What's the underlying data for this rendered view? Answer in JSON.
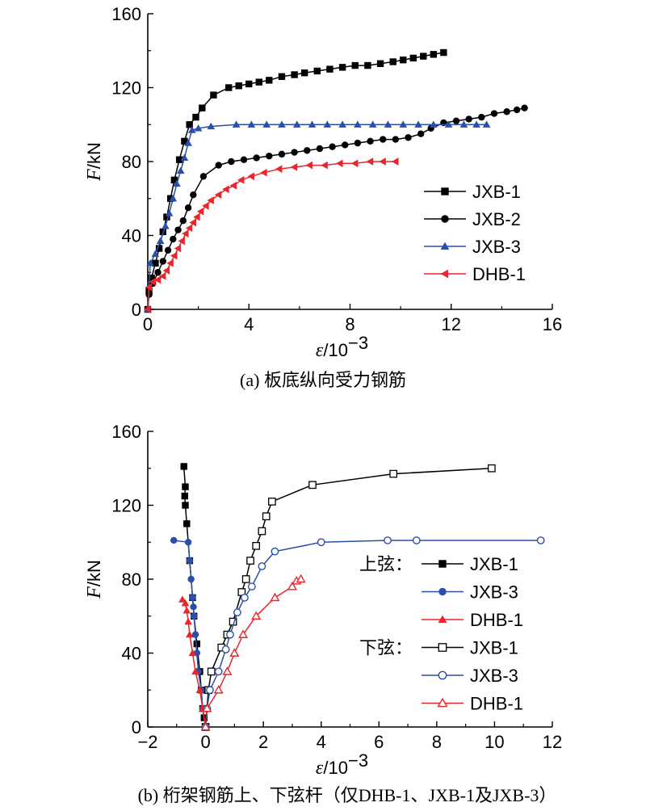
{
  "chart_data": [
    {
      "type": "line",
      "caption": "(a) 板底纵向受力钢筋",
      "ylabel_var": "F",
      "ylabel_unit": "/kN",
      "xlabel_var": "ε",
      "xlabel_unit": "/10",
      "xlabel_exp": "−3",
      "xlim": [
        0,
        16
      ],
      "ylim": [
        0,
        160
      ],
      "xticks": [
        "0",
        "4",
        "8",
        "12",
        "16"
      ],
      "yticks": [
        "0",
        "40",
        "80",
        "120",
        "160"
      ],
      "legend_position": "lower-right",
      "grid": false,
      "series": [
        {
          "name": "JXB-1",
          "color": "#000000",
          "marker": "square",
          "filled": true,
          "points": [
            [
              0,
              0
            ],
            [
              0.05,
              10
            ],
            [
              0.15,
              17
            ],
            [
              0.3,
              25
            ],
            [
              0.45,
              33
            ],
            [
              0.6,
              42
            ],
            [
              0.75,
              50
            ],
            [
              0.9,
              60
            ],
            [
              1.05,
              70
            ],
            [
              1.25,
              81
            ],
            [
              1.45,
              91
            ],
            [
              1.65,
              100
            ],
            [
              1.9,
              104
            ],
            [
              2.15,
              109
            ],
            [
              2.6,
              116
            ],
            [
              3.2,
              120
            ],
            [
              3.6,
              121
            ],
            [
              4.0,
              122
            ],
            [
              4.4,
              123
            ],
            [
              4.8,
              124
            ],
            [
              5.3,
              126
            ],
            [
              5.8,
              127
            ],
            [
              6.2,
              128
            ],
            [
              6.7,
              129
            ],
            [
              7.2,
              130
            ],
            [
              7.7,
              131
            ],
            [
              8.2,
              132
            ],
            [
              8.7,
              132
            ],
            [
              9.2,
              133
            ],
            [
              9.7,
              134
            ],
            [
              10.1,
              135
            ],
            [
              10.5,
              136
            ],
            [
              10.9,
              137
            ],
            [
              11.3,
              138
            ],
            [
              11.7,
              139
            ]
          ]
        },
        {
          "name": "JXB-2",
          "color": "#000000",
          "marker": "circle",
          "filled": true,
          "points": [
            [
              0,
              0
            ],
            [
              0.05,
              8
            ],
            [
              0.2,
              14
            ],
            [
              0.4,
              20
            ],
            [
              0.6,
              26
            ],
            [
              0.8,
              32
            ],
            [
              1.0,
              38
            ],
            [
              1.2,
              43
            ],
            [
              1.4,
              48
            ],
            [
              1.6,
              55
            ],
            [
              1.8,
              62
            ],
            [
              2.2,
              72
            ],
            [
              2.8,
              78
            ],
            [
              3.3,
              80
            ],
            [
              3.8,
              81
            ],
            [
              4.3,
              82
            ],
            [
              4.8,
              83
            ],
            [
              5.3,
              84
            ],
            [
              5.8,
              85
            ],
            [
              6.3,
              86
            ],
            [
              6.8,
              87
            ],
            [
              7.3,
              88
            ],
            [
              7.8,
              89
            ],
            [
              8.3,
              90
            ],
            [
              8.8,
              91
            ],
            [
              9.3,
              92
            ],
            [
              9.8,
              92
            ],
            [
              10.3,
              93
            ],
            [
              10.8,
              95
            ],
            [
              11.2,
              98
            ],
            [
              11.7,
              101
            ],
            [
              12.2,
              102
            ],
            [
              12.7,
              103
            ],
            [
              13.2,
              104
            ],
            [
              13.7,
              106
            ],
            [
              14.2,
              107
            ],
            [
              14.6,
              108
            ],
            [
              14.9,
              109
            ]
          ]
        },
        {
          "name": "JXB-3",
          "color": "#2a4fa8",
          "marker": "triangle-up",
          "filled": true,
          "points": [
            [
              0,
              0
            ],
            [
              0.1,
              25
            ],
            [
              0.3,
              30
            ],
            [
              0.5,
              37
            ],
            [
              0.7,
              45
            ],
            [
              0.85,
              52
            ],
            [
              1.0,
              60
            ],
            [
              1.15,
              68
            ],
            [
              1.3,
              75
            ],
            [
              1.45,
              82
            ],
            [
              1.6,
              90
            ],
            [
              1.75,
              97
            ],
            [
              2.0,
              98
            ],
            [
              2.5,
              99
            ],
            [
              3.5,
              100
            ],
            [
              4.1,
              100
            ],
            [
              4.7,
              100
            ],
            [
              5.3,
              100
            ],
            [
              5.9,
              100
            ],
            [
              6.5,
              100
            ],
            [
              7.1,
              100
            ],
            [
              7.7,
              100
            ],
            [
              8.3,
              100
            ],
            [
              8.9,
              100
            ],
            [
              9.5,
              100
            ],
            [
              10.1,
              100
            ],
            [
              10.7,
              100
            ],
            [
              11.3,
              100
            ],
            [
              11.9,
              100
            ],
            [
              12.5,
              100
            ],
            [
              13.0,
              100
            ],
            [
              13.4,
              100
            ]
          ]
        },
        {
          "name": "DHB-1",
          "color": "#e8262b",
          "marker": "triangle-left",
          "filled": true,
          "points": [
            [
              0,
              0
            ],
            [
              0.05,
              12
            ],
            [
              0.2,
              15
            ],
            [
              0.4,
              16
            ],
            [
              0.6,
              18
            ],
            [
              0.75,
              21
            ],
            [
              0.9,
              25
            ],
            [
              1.05,
              29
            ],
            [
              1.2,
              33
            ],
            [
              1.35,
              37
            ],
            [
              1.5,
              41
            ],
            [
              1.65,
              44
            ],
            [
              1.8,
              47
            ],
            [
              1.95,
              50
            ],
            [
              2.1,
              53
            ],
            [
              2.3,
              56
            ],
            [
              2.5,
              59
            ],
            [
              2.8,
              62
            ],
            [
              3.1,
              65
            ],
            [
              3.4,
              67
            ],
            [
              3.7,
              70
            ],
            [
              4.1,
              72
            ],
            [
              4.6,
              74
            ],
            [
              5.2,
              76
            ],
            [
              5.8,
              77
            ],
            [
              6.4,
              78
            ],
            [
              7.0,
              78
            ],
            [
              7.6,
              79
            ],
            [
              8.2,
              79
            ],
            [
              8.8,
              80
            ],
            [
              9.3,
              80
            ],
            [
              9.8,
              80
            ]
          ]
        }
      ]
    },
    {
      "type": "line",
      "caption": "(b) 桁架钢筋上、下弦杆（仅DHB-1、JXB-1及JXB-3）",
      "ylabel_var": "F",
      "ylabel_unit": "/kN",
      "xlabel_var": "ε",
      "xlabel_unit": "/10",
      "xlabel_exp": "−3",
      "xlim": [
        -2,
        12
      ],
      "ylim": [
        0,
        160
      ],
      "xticks": [
        "−2",
        "0",
        "2",
        "4",
        "6",
        "8",
        "10",
        "12"
      ],
      "yticks": [
        "0",
        "40",
        "80",
        "120",
        "160"
      ],
      "legend_position": "right",
      "grid": false,
      "legend_groups": [
        "上弦：",
        "下弦："
      ],
      "series": [
        {
          "name": "JXB-1",
          "group": 0,
          "color": "#000000",
          "marker": "square",
          "filled": true,
          "points": [
            [
              0,
              0
            ],
            [
              -0.05,
              5
            ],
            [
              -0.1,
              10
            ],
            [
              -0.15,
              20
            ],
            [
              -0.2,
              30
            ],
            [
              -0.3,
              45
            ],
            [
              -0.4,
              60
            ],
            [
              -0.45,
              70
            ],
            [
              -0.55,
              90
            ],
            [
              -0.65,
              110
            ],
            [
              -0.7,
              120
            ],
            [
              -0.72,
              125
            ],
            [
              -0.7,
              130
            ],
            [
              -0.75,
              141
            ]
          ]
        },
        {
          "name": "JXB-3",
          "group": 0,
          "color": "#2a4fa8",
          "marker": "circle",
          "filled": true,
          "points": [
            [
              0,
              0
            ],
            [
              -0.1,
              10
            ],
            [
              -0.15,
              20
            ],
            [
              -0.25,
              30
            ],
            [
              -0.3,
              40
            ],
            [
              -0.35,
              50
            ],
            [
              -0.4,
              60
            ],
            [
              -0.42,
              65
            ],
            [
              -0.45,
              70
            ],
            [
              -0.5,
              80
            ],
            [
              -0.55,
              90
            ],
            [
              -0.6,
              100
            ],
            [
              -1.1,
              101
            ]
          ]
        },
        {
          "name": "DHB-1",
          "group": 0,
          "color": "#e8262b",
          "marker": "triangle-up",
          "filled": true,
          "points": [
            [
              0,
              0
            ],
            [
              -0.1,
              10
            ],
            [
              -0.2,
              20
            ],
            [
              -0.35,
              30
            ],
            [
              -0.45,
              40
            ],
            [
              -0.55,
              50
            ],
            [
              -0.6,
              57
            ],
            [
              -0.65,
              63
            ],
            [
              -0.7,
              67
            ],
            [
              -0.8,
              69
            ]
          ]
        },
        {
          "name": "JXB-1",
          "group": 1,
          "color": "#000000",
          "marker": "square",
          "filled": false,
          "points": [
            [
              0,
              0
            ],
            [
              0.1,
              20
            ],
            [
              0.2,
              30
            ],
            [
              0.55,
              43
            ],
            [
              0.75,
              50
            ],
            [
              0.95,
              57
            ],
            [
              1.25,
              73
            ],
            [
              1.4,
              80
            ],
            [
              1.55,
              90
            ],
            [
              1.75,
              98
            ],
            [
              1.95,
              106
            ],
            [
              2.1,
              114
            ],
            [
              2.3,
              122
            ],
            [
              3.7,
              131
            ],
            [
              6.5,
              137
            ],
            [
              9.9,
              140
            ]
          ]
        },
        {
          "name": "JXB-3",
          "group": 1,
          "color": "#2a4fa8",
          "marker": "circle",
          "filled": false,
          "points": [
            [
              0,
              0
            ],
            [
              0.05,
              10
            ],
            [
              0.15,
              20
            ],
            [
              0.45,
              30
            ],
            [
              0.7,
              42
            ],
            [
              0.85,
              50
            ],
            [
              1.1,
              62
            ],
            [
              1.35,
              70
            ],
            [
              1.6,
              76
            ],
            [
              1.95,
              87
            ],
            [
              2.4,
              95
            ],
            [
              4.0,
              100
            ],
            [
              6.3,
              101
            ],
            [
              7.3,
              101
            ],
            [
              11.6,
              101
            ]
          ]
        },
        {
          "name": "DHB-1",
          "group": 1,
          "color": "#e8262b",
          "marker": "triangle-up",
          "filled": false,
          "points": [
            [
              0,
              0
            ],
            [
              0.05,
              10
            ],
            [
              0.45,
              20
            ],
            [
              0.75,
              30
            ],
            [
              1.0,
              40
            ],
            [
              1.3,
              50
            ],
            [
              1.75,
              60
            ],
            [
              2.4,
              70
            ],
            [
              3.0,
              76
            ],
            [
              3.15,
              79
            ],
            [
              3.3,
              80
            ]
          ]
        }
      ]
    }
  ]
}
